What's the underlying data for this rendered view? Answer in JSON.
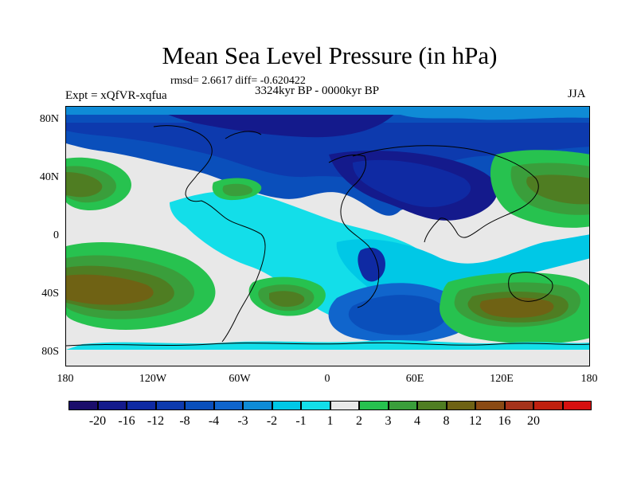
{
  "title": "Mean Sea Level Pressure (in hPa)",
  "stats": "rmsd= 2.6617 diff= -0.620422",
  "period": "3324kyr BP - 0000kyr BP",
  "experiment": "Expt = xQfVR-xqfua",
  "season": "JJA",
  "lat_labels": [
    "80N",
    "40N",
    "0",
    "40S",
    "80S"
  ],
  "lon_labels": [
    "180",
    "120W",
    "60W",
    "0",
    "60E",
    "120E",
    "180"
  ],
  "colorbar": {
    "labels": [
      "-20",
      "-16",
      "-12",
      "-8",
      "-4",
      "-3",
      "-2",
      "-1",
      "1",
      "2",
      "3",
      "4",
      "8",
      "12",
      "16",
      "20"
    ],
    "colors": [
      "#1a0d6b",
      "#141a8c",
      "#0f2aa3",
      "#0d3aae",
      "#0a4fbb",
      "#1065cc",
      "#0f8bd6",
      "#00c8e6",
      "#13dee9",
      "#e8e8e8",
      "#27c24f",
      "#3a9e3b",
      "#4f7d22",
      "#6f6214",
      "#8a4a14",
      "#a5321a",
      "#c0200f",
      "#d61010"
    ]
  }
}
